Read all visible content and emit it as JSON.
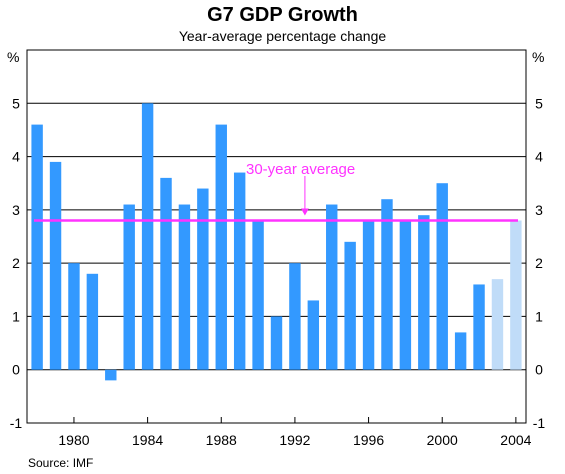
{
  "chart_data": {
    "type": "bar",
    "title": "G7 GDP Growth",
    "subtitle": "Year-average percentage change",
    "source": "Source: IMF",
    "y_unit_left": "%",
    "y_unit_right": "%",
    "ylim": [
      -1,
      6
    ],
    "yticks": [
      -1,
      0,
      1,
      2,
      3,
      4,
      5
    ],
    "xticks": [
      "1980",
      "1984",
      "1988",
      "1992",
      "1996",
      "2000",
      "2004"
    ],
    "grid": true,
    "categories": [
      "1978",
      "1979",
      "1980",
      "1981",
      "1982",
      "1983",
      "1984",
      "1985",
      "1986",
      "1987",
      "1988",
      "1989",
      "1990",
      "1991",
      "1992",
      "1993",
      "1994",
      "1995",
      "1996",
      "1997",
      "1998",
      "1999",
      "2000",
      "2001",
      "2002",
      "2003",
      "2004"
    ],
    "values": [
      4.6,
      3.9,
      2.0,
      1.8,
      -0.2,
      3.1,
      5.0,
      3.6,
      3.1,
      3.4,
      4.6,
      3.7,
      2.8,
      1.0,
      2.0,
      1.3,
      3.1,
      2.4,
      2.8,
      3.2,
      2.8,
      2.9,
      3.5,
      0.7,
      1.6,
      1.7,
      2.8
    ],
    "forecast_from": "2003",
    "average": {
      "value": 2.8,
      "label": "30-year average"
    },
    "colors": {
      "bar": "#3399ff",
      "forecast_bar": "#c0dcf8",
      "average_line": "#ff33ff"
    }
  }
}
